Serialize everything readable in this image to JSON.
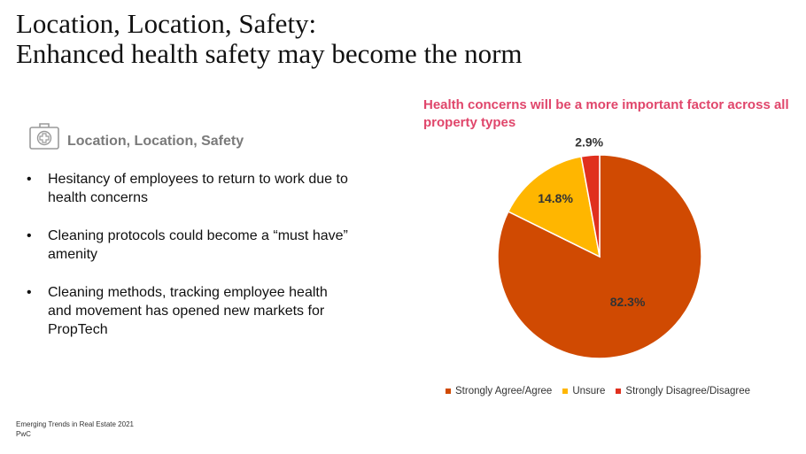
{
  "slide": {
    "title_line1": "Location, Location, Safety:",
    "title_line2": "Enhanced health safety may become the norm",
    "section_icon": "first-aid-kit-icon",
    "section_label": "Location, Location, Safety",
    "bullets": [
      "Hesitancy of employees to return to work due to health concerns",
      "Cleaning protocols could become a “must have” amenity",
      "Cleaning methods, tracking employee health and movement has opened new markets for PropTech"
    ],
    "footer_line1": "Emerging Trends in Real Estate 2021",
    "footer_line2": "PwC"
  },
  "chart_data": {
    "type": "pie",
    "title": "Health concerns will be a more important factor across all property types",
    "categories": [
      "Strongly Agree/Agree",
      "Unsure",
      "Strongly Disagree/Disagree"
    ],
    "values": [
      82.3,
      14.8,
      2.9
    ],
    "labels": [
      "82.3%",
      "14.8%",
      "2.9%"
    ],
    "colors": [
      "#d04a02",
      "#ffb600",
      "#e0301e"
    ],
    "legend_position": "bottom"
  }
}
